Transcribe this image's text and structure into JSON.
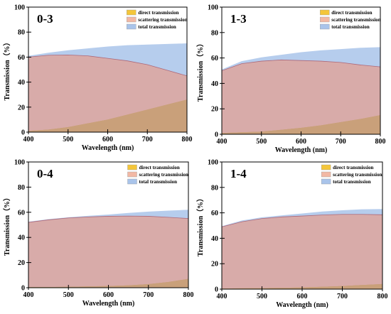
{
  "chart_data": [
    {
      "type": "area",
      "title": "0-3",
      "xlabel": "Wavelength (nm)",
      "ylabel": "Transmission（%）",
      "xlim": [
        400,
        800
      ],
      "ylim": [
        0,
        100
      ],
      "xticks": [
        400,
        500,
        600,
        700,
        800
      ],
      "yticks": [
        0,
        20,
        40,
        60,
        80,
        100
      ],
      "legend": "top-right",
      "x": [
        400,
        450,
        500,
        550,
        600,
        650,
        700,
        750,
        800
      ],
      "series": [
        {
          "name": "direct transmission",
          "color": "#f4c63a",
          "values": [
            1,
            2,
            4,
            7,
            10,
            14,
            18,
            22,
            26
          ]
        },
        {
          "name": "scattering transmission",
          "color": "#f2b8a4",
          "values": [
            60,
            61.5,
            61.7,
            61,
            59,
            57,
            54,
            49.5,
            45
          ]
        },
        {
          "name": "total transmission",
          "color": "#a9c4ea",
          "values": [
            61,
            63.5,
            65.5,
            67,
            68.5,
            69.5,
            70,
            70.5,
            71
          ]
        }
      ]
    },
    {
      "type": "area",
      "title": "1-3",
      "xlabel": "Wavelength (nm)",
      "ylabel": "Transmission（%）",
      "xlim": [
        400,
        800
      ],
      "ylim": [
        0,
        100
      ],
      "xticks": [
        400,
        500,
        600,
        700,
        800
      ],
      "yticks": [
        0,
        20,
        40,
        60,
        80,
        100
      ],
      "legend": "top-right",
      "x": [
        400,
        450,
        500,
        550,
        600,
        650,
        700,
        750,
        800
      ],
      "series": [
        {
          "name": "direct transmission",
          "color": "#f4c63a",
          "values": [
            1,
            1.5,
            2,
            3.5,
            5,
            7,
            9.5,
            12,
            15
          ]
        },
        {
          "name": "scattering transmission",
          "color": "#f2b8a4",
          "values": [
            50,
            55.5,
            57.5,
            58.5,
            58,
            57.5,
            56.5,
            54.5,
            53
          ]
        },
        {
          "name": "total transmission",
          "color": "#a9c4ea",
          "values": [
            51,
            57.5,
            60.5,
            62.5,
            64.5,
            66,
            67,
            68,
            68.5
          ]
        }
      ]
    },
    {
      "type": "area",
      "title": "0-4",
      "xlabel": "Wavelength (nm)",
      "ylabel": "Transmission（%）",
      "xlim": [
        400,
        800
      ],
      "ylim": [
        0,
        100
      ],
      "xticks": [
        400,
        500,
        600,
        700,
        800
      ],
      "yticks": [
        0,
        20,
        40,
        60,
        80,
        100
      ],
      "legend": "top-right",
      "x": [
        400,
        450,
        500,
        550,
        600,
        650,
        700,
        750,
        800
      ],
      "series": [
        {
          "name": "direct transmission",
          "color": "#f4c63a",
          "values": [
            0.5,
            0.5,
            0.7,
            1,
            1.3,
            1.8,
            2.8,
            4.5,
            7
          ]
        },
        {
          "name": "scattering transmission",
          "color": "#f2b8a4",
          "values": [
            52,
            54,
            55.5,
            56.3,
            56.8,
            57,
            56.8,
            56,
            55
          ]
        },
        {
          "name": "total transmission",
          "color": "#a9c4ea",
          "values": [
            52.5,
            54.5,
            56,
            57.2,
            58.2,
            59.5,
            60.5,
            61.3,
            62
          ]
        }
      ]
    },
    {
      "type": "area",
      "title": "1-4",
      "xlabel": "Wavelength (nm)",
      "ylabel": "Transmission（%）",
      "xlim": [
        400,
        800
      ],
      "ylim": [
        0,
        100
      ],
      "xticks": [
        400,
        500,
        600,
        700,
        800
      ],
      "yticks": [
        0,
        20,
        40,
        60,
        80,
        100
      ],
      "legend": "top-right",
      "x": [
        400,
        450,
        500,
        550,
        600,
        650,
        700,
        750,
        800
      ],
      "series": [
        {
          "name": "direct transmission",
          "color": "#f4c63a",
          "values": [
            0.5,
            0.6,
            0.8,
            1,
            1.3,
            1.8,
            2.4,
            3.2,
            4
          ]
        },
        {
          "name": "scattering transmission",
          "color": "#f2b8a4",
          "values": [
            49,
            53,
            55.5,
            56.8,
            57.5,
            58.3,
            58.8,
            58.8,
            58.5
          ]
        },
        {
          "name": "total transmission",
          "color": "#a9c4ea",
          "values": [
            49.5,
            54,
            56.5,
            58,
            59.5,
            61,
            62,
            62.8,
            63
          ]
        }
      ]
    }
  ]
}
